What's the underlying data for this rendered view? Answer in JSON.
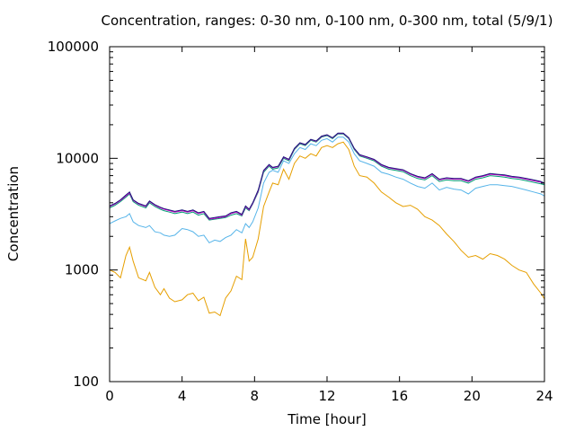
{
  "chart_data": {
    "type": "line",
    "title": "Concentration, ranges: 0-30 nm, 0-100 nm, 0-300 nm, total (5/9/1)",
    "xlabel": "Time [hour]",
    "ylabel": "Concentration",
    "xlim": [
      0,
      24
    ],
    "ylim": [
      100,
      100000
    ],
    "yscale": "log",
    "grid": false,
    "legend": "none",
    "x_ticks": [
      {
        "value": 0,
        "label": "0"
      },
      {
        "value": 4,
        "label": "4"
      },
      {
        "value": 8,
        "label": "8"
      },
      {
        "value": 12,
        "label": "12"
      },
      {
        "value": 16,
        "label": "16"
      },
      {
        "value": 20,
        "label": "20"
      },
      {
        "value": 24,
        "label": "24"
      }
    ],
    "y_ticks": [
      {
        "value": 100,
        "label": "100"
      },
      {
        "value": 1000,
        "label": "1000"
      },
      {
        "value": 10000,
        "label": "10000"
      },
      {
        "value": 100000,
        "label": "100000"
      }
    ],
    "series": [
      {
        "color": "#e69f00",
        "x": [
          0,
          0.3,
          0.6,
          0.9,
          1.1,
          1.3,
          1.6,
          2.0,
          2.2,
          2.5,
          2.8,
          3.0,
          3.3,
          3.6,
          4.0,
          4.3,
          4.6,
          4.9,
          5.2,
          5.5,
          5.8,
          6.1,
          6.4,
          6.7,
          7.0,
          7.3,
          7.5,
          7.7,
          7.9,
          8.2,
          8.5,
          8.8,
          9.0,
          9.3,
          9.6,
          9.9,
          10.2,
          10.5,
          10.8,
          11.1,
          11.4,
          11.7,
          12.0,
          12.3,
          12.6,
          12.9,
          13.2,
          13.5,
          13.8,
          14.2,
          14.6,
          15.0,
          15.4,
          15.8,
          16.2,
          16.6,
          17.0,
          17.4,
          17.8,
          18.2,
          18.6,
          19.0,
          19.4,
          19.8,
          20.2,
          20.6,
          21.0,
          21.4,
          21.8,
          22.2,
          22.6,
          23.0,
          23.4,
          23.8,
          24.0
        ],
        "y": [
          1000,
          950,
          850,
          1350,
          1600,
          1200,
          850,
          800,
          950,
          700,
          600,
          680,
          560,
          520,
          540,
          600,
          620,
          530,
          570,
          410,
          420,
          390,
          560,
          650,
          880,
          820,
          1900,
          1200,
          1300,
          1900,
          3700,
          5000,
          6000,
          5800,
          8000,
          6500,
          9000,
          10500,
          10000,
          11000,
          10500,
          12500,
          13000,
          12500,
          13500,
          14000,
          12000,
          8500,
          7000,
          6800,
          6000,
          5000,
          4500,
          4000,
          3700,
          3800,
          3500,
          3000,
          2800,
          2500,
          2100,
          1800,
          1500,
          1300,
          1350,
          1250,
          1400,
          1350,
          1250,
          1100,
          1000,
          950,
          750,
          620,
          550
        ]
      },
      {
        "color": "#56b4e9",
        "x": [
          0,
          0.3,
          0.6,
          0.9,
          1.1,
          1.3,
          1.6,
          2.0,
          2.2,
          2.5,
          2.8,
          3.0,
          3.3,
          3.6,
          4.0,
          4.3,
          4.6,
          4.9,
          5.2,
          5.5,
          5.8,
          6.1,
          6.4,
          6.7,
          7.0,
          7.3,
          7.5,
          7.7,
          7.9,
          8.2,
          8.5,
          8.8,
          9.0,
          9.3,
          9.6,
          9.9,
          10.2,
          10.5,
          10.8,
          11.1,
          11.4,
          11.7,
          12.0,
          12.3,
          12.6,
          12.9,
          13.2,
          13.5,
          13.8,
          14.2,
          14.6,
          15.0,
          15.4,
          15.8,
          16.2,
          16.6,
          17.0,
          17.4,
          17.8,
          18.2,
          18.6,
          19.0,
          19.4,
          19.8,
          20.2,
          20.6,
          21.0,
          21.4,
          21.8,
          22.2,
          22.6,
          23.0,
          23.4,
          23.8,
          24.0
        ],
        "y": [
          2600,
          2750,
          2900,
          3000,
          3200,
          2700,
          2500,
          2400,
          2500,
          2200,
          2150,
          2050,
          2000,
          2050,
          2350,
          2300,
          2200,
          2000,
          2050,
          1750,
          1850,
          1800,
          1950,
          2050,
          2300,
          2150,
          2600,
          2400,
          2700,
          3600,
          6000,
          7500,
          7800,
          7500,
          9500,
          9000,
          11000,
          12500,
          12000,
          13500,
          13000,
          14500,
          15000,
          14000,
          15500,
          15500,
          14000,
          11000,
          9500,
          9000,
          8500,
          7500,
          7200,
          6800,
          6500,
          6000,
          5600,
          5400,
          6000,
          5200,
          5500,
          5300,
          5200,
          4800,
          5400,
          5600,
          5800,
          5800,
          5700,
          5600,
          5400,
          5200,
          5000,
          4800,
          4600
        ]
      },
      {
        "color": "#009e73",
        "x": [
          0,
          0.3,
          0.6,
          0.9,
          1.1,
          1.3,
          1.6,
          2.0,
          2.2,
          2.5,
          2.8,
          3.0,
          3.3,
          3.6,
          4.0,
          4.3,
          4.6,
          4.9,
          5.2,
          5.5,
          5.8,
          6.1,
          6.4,
          6.7,
          7.0,
          7.3,
          7.5,
          7.7,
          7.9,
          8.2,
          8.5,
          8.8,
          9.0,
          9.3,
          9.6,
          9.9,
          10.2,
          10.5,
          10.8,
          11.1,
          11.4,
          11.7,
          12.0,
          12.3,
          12.6,
          12.9,
          13.2,
          13.5,
          13.8,
          14.2,
          14.6,
          15.0,
          15.4,
          15.8,
          16.2,
          16.6,
          17.0,
          17.4,
          17.8,
          18.2,
          18.6,
          19.0,
          19.4,
          19.8,
          20.2,
          20.6,
          21.0,
          21.4,
          21.8,
          22.2,
          22.6,
          23.0,
          23.4,
          23.8,
          24.0
        ],
        "y": [
          3600,
          3800,
          4100,
          4500,
          4800,
          4100,
          3800,
          3600,
          4000,
          3700,
          3500,
          3400,
          3300,
          3200,
          3300,
          3200,
          3300,
          3100,
          3200,
          2800,
          2850,
          2900,
          2950,
          3100,
          3200,
          3050,
          3600,
          3400,
          3900,
          5000,
          7500,
          8500,
          8000,
          8200,
          10000,
          9500,
          12000,
          13500,
          13000,
          14500,
          14000,
          15500,
          16000,
          15000,
          16500,
          16500,
          15000,
          12000,
          10500,
          10000,
          9500,
          8500,
          8000,
          7800,
          7600,
          7000,
          6600,
          6400,
          7000,
          6200,
          6400,
          6300,
          6300,
          6000,
          6500,
          6700,
          7000,
          6900,
          6800,
          6600,
          6500,
          6300,
          6100,
          5900,
          5800
        ]
      },
      {
        "color": "#cc00cc",
        "x": [
          0,
          0.3,
          0.6,
          0.9,
          1.1,
          1.3,
          1.6,
          2.0,
          2.2,
          2.5,
          2.8,
          3.0,
          3.3,
          3.6,
          4.0,
          4.3,
          4.6,
          4.9,
          5.2,
          5.5,
          5.8,
          6.1,
          6.4,
          6.7,
          7.0,
          7.3,
          7.5,
          7.7,
          7.9,
          8.2,
          8.5,
          8.8,
          9.0,
          9.3,
          9.6,
          9.9,
          10.2,
          10.5,
          10.8,
          11.1,
          11.4,
          11.7,
          12.0,
          12.3,
          12.6,
          12.9,
          13.2,
          13.5,
          13.8,
          14.2,
          14.6,
          15.0,
          15.4,
          15.8,
          16.2,
          16.6,
          17.0,
          17.4,
          17.8,
          18.2,
          18.6,
          19.0,
          19.4,
          19.8,
          20.2,
          20.6,
          21.0,
          21.4,
          21.8,
          22.2,
          22.6,
          23.0,
          23.4,
          23.8,
          24.0
        ],
        "y": [
          3700,
          3900,
          4200,
          4600,
          4900,
          4200,
          3900,
          3700,
          4100,
          3800,
          3600,
          3500,
          3400,
          3300,
          3400,
          3300,
          3400,
          3200,
          3300,
          2850,
          2900,
          2950,
          3000,
          3200,
          3300,
          3100,
          3700,
          3450,
          3950,
          5100,
          7700,
          8700,
          8200,
          8400,
          10200,
          9700,
          12200,
          13700,
          13200,
          14700,
          14200,
          15700,
          16200,
          15200,
          16700,
          16700,
          15200,
          12200,
          10700,
          10200,
          9700,
          8700,
          8200,
          8000,
          7800,
          7200,
          6800,
          6600,
          7200,
          6400,
          6600,
          6500,
          6500,
          6200,
          6700,
          6900,
          7200,
          7100,
          7000,
          6800,
          6700,
          6500,
          6300,
          6100,
          5950
        ]
      },
      {
        "color": "#1a1a7a",
        "x": [
          0,
          0.3,
          0.6,
          0.9,
          1.1,
          1.3,
          1.6,
          2.0,
          2.2,
          2.5,
          2.8,
          3.0,
          3.3,
          3.6,
          4.0,
          4.3,
          4.6,
          4.9,
          5.2,
          5.5,
          5.8,
          6.1,
          6.4,
          6.7,
          7.0,
          7.3,
          7.5,
          7.7,
          7.9,
          8.2,
          8.5,
          8.8,
          9.0,
          9.3,
          9.6,
          9.9,
          10.2,
          10.5,
          10.8,
          11.1,
          11.4,
          11.7,
          12.0,
          12.3,
          12.6,
          12.9,
          13.2,
          13.5,
          13.8,
          14.2,
          14.6,
          15.0,
          15.4,
          15.8,
          16.2,
          16.6,
          17.0,
          17.4,
          17.8,
          18.2,
          18.6,
          19.0,
          19.4,
          19.8,
          20.2,
          20.6,
          21.0,
          21.4,
          21.8,
          22.2,
          22.6,
          23.0,
          23.4,
          23.8,
          24.0
        ],
        "y": [
          3750,
          3950,
          4250,
          4700,
          5000,
          4250,
          3950,
          3750,
          4150,
          3850,
          3650,
          3550,
          3450,
          3350,
          3450,
          3350,
          3450,
          3250,
          3350,
          2900,
          2950,
          3000,
          3050,
          3250,
          3350,
          3150,
          3750,
          3500,
          4000,
          5200,
          7800,
          8800,
          8300,
          8500,
          10300,
          9800,
          12300,
          13800,
          13300,
          14800,
          14300,
          15800,
          16300,
          15300,
          16800,
          16800,
          15300,
          12300,
          10800,
          10300,
          9800,
          8800,
          8300,
          8100,
          7900,
          7300,
          6900,
          6700,
          7300,
          6500,
          6700,
          6600,
          6600,
          6300,
          6800,
          7000,
          7300,
          7200,
          7100,
          6900,
          6800,
          6600,
          6400,
          6200,
          6000
        ]
      }
    ]
  }
}
